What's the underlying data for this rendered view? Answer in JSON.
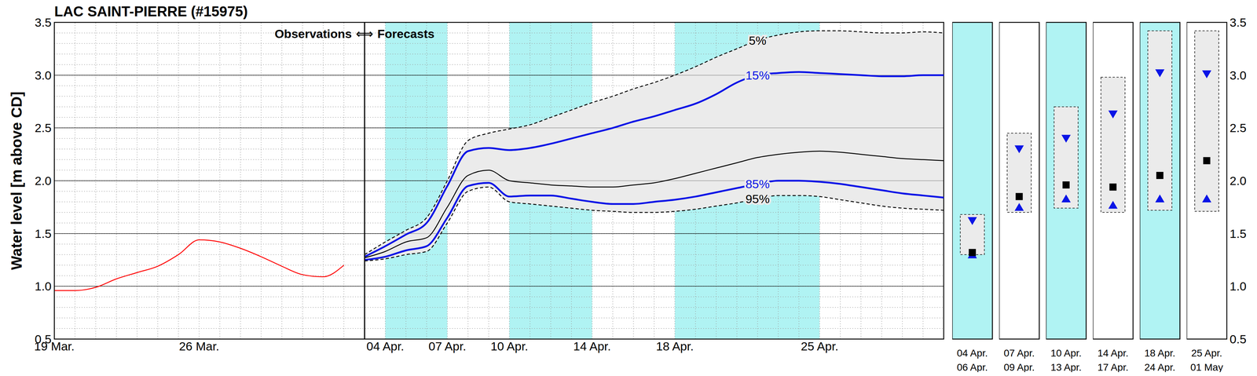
{
  "chart_data": {
    "type": "line",
    "title": "LAC SAINT-PIERRE (#15975)",
    "y_label": "Water level [m above CD]",
    "annotation": "Observations ⟺ Forecasts",
    "forecast_start": 15,
    "xlim": [
      0,
      43
    ],
    "xticks": [
      {
        "value": 0,
        "label": "19 Mar."
      },
      {
        "value": 7,
        "label": "26 Mar."
      },
      {
        "value": 16,
        "label": "04 Apr."
      },
      {
        "value": 19,
        "label": "07 Apr."
      },
      {
        "value": 22,
        "label": "10 Apr."
      },
      {
        "value": 26,
        "label": "14 Apr."
      },
      {
        "value": 30,
        "label": "18 Apr."
      },
      {
        "value": 37,
        "label": "25 Apr."
      }
    ],
    "ylim": [
      0.5,
      3.5
    ],
    "yticks": [
      0.5,
      {
        "value": 1,
        "label": "1.0"
      },
      1.5,
      {
        "value": 2,
        "label": "2.0"
      },
      2.5,
      {
        "value": 3,
        "label": "3.0"
      },
      3.5
    ],
    "grid": true,
    "shaded_periods": [
      {
        "from": 16,
        "to": 19
      },
      {
        "from": 22,
        "to": 26
      },
      {
        "from": 30,
        "to": 37
      }
    ],
    "series": [
      {
        "color": "#ff0000",
        "line_style": "solid",
        "x": [
          0,
          1,
          2,
          3,
          4,
          5,
          6,
          7,
          8,
          9,
          10,
          11,
          12,
          13,
          14
        ],
        "values": [
          0.96,
          0.96,
          0.99,
          1.07,
          1.13,
          1.19,
          1.3,
          1.44,
          1.42,
          1.36,
          1.28,
          1.19,
          1.11,
          1.09,
          1.2
        ]
      },
      {
        "name": "5%",
        "color": "#000000",
        "line_style": "dashed",
        "x": [
          15,
          16,
          17,
          18,
          19,
          20,
          21,
          22,
          23,
          24,
          25,
          26,
          27,
          28,
          29,
          30,
          31,
          32,
          33,
          34,
          35,
          36,
          37,
          38,
          39,
          40,
          41,
          42,
          43
        ],
        "values": [
          1.3,
          1.42,
          1.53,
          1.65,
          2.0,
          2.38,
          2.45,
          2.49,
          2.53,
          2.6,
          2.67,
          2.74,
          2.8,
          2.87,
          2.93,
          3.0,
          3.08,
          3.17,
          3.25,
          3.33,
          3.38,
          3.41,
          3.42,
          3.42,
          3.41,
          3.4,
          3.4,
          3.41,
          3.4
        ]
      },
      {
        "name": "15%",
        "color": "#0a14e6",
        "line_style": "solid",
        "x": [
          15,
          16,
          17,
          18,
          19,
          20,
          21,
          22,
          23,
          24,
          25,
          26,
          27,
          28,
          29,
          30,
          31,
          32,
          33,
          34,
          35,
          36,
          37,
          38,
          39,
          40,
          41,
          42,
          43
        ],
        "values": [
          1.28,
          1.38,
          1.49,
          1.6,
          1.95,
          2.28,
          2.31,
          2.29,
          2.31,
          2.35,
          2.4,
          2.45,
          2.5,
          2.56,
          2.61,
          2.67,
          2.73,
          2.82,
          2.93,
          3.0,
          3.02,
          3.03,
          3.02,
          3.01,
          3.0,
          2.99,
          2.99,
          3.0,
          3.0
        ]
      },
      {
        "color": "#000000",
        "line_style": "solid",
        "x": [
          15,
          16,
          17,
          18,
          19,
          20,
          21,
          22,
          23,
          24,
          25,
          26,
          27,
          28,
          29,
          30,
          31,
          32,
          33,
          34,
          35,
          36,
          37,
          38,
          39,
          40,
          41,
          42,
          43
        ],
        "values": [
          1.27,
          1.33,
          1.42,
          1.46,
          1.75,
          2.05,
          2.1,
          2.0,
          1.98,
          1.96,
          1.95,
          1.94,
          1.94,
          1.96,
          1.98,
          2.02,
          2.07,
          2.12,
          2.17,
          2.22,
          2.25,
          2.27,
          2.28,
          2.27,
          2.25,
          2.23,
          2.21,
          2.2,
          2.19
        ]
      },
      {
        "name": "85%",
        "color": "#0a14e6",
        "line_style": "solid",
        "x": [
          15,
          16,
          17,
          18,
          19,
          20,
          21,
          22,
          23,
          24,
          25,
          26,
          27,
          28,
          29,
          30,
          31,
          32,
          33,
          34,
          35,
          36,
          37,
          38,
          39,
          40,
          41,
          42,
          43
        ],
        "values": [
          1.25,
          1.28,
          1.34,
          1.38,
          1.65,
          1.95,
          1.98,
          1.85,
          1.86,
          1.86,
          1.83,
          1.8,
          1.78,
          1.78,
          1.8,
          1.82,
          1.85,
          1.89,
          1.93,
          1.97,
          2.0,
          2.0,
          1.99,
          1.97,
          1.94,
          1.91,
          1.88,
          1.86,
          1.84
        ]
      },
      {
        "name": "95%",
        "color": "#000000",
        "line_style": "dashed",
        "x": [
          15,
          16,
          17,
          18,
          19,
          20,
          21,
          22,
          23,
          24,
          25,
          26,
          27,
          28,
          29,
          30,
          31,
          32,
          33,
          34,
          35,
          36,
          37,
          38,
          39,
          40,
          41,
          42,
          43
        ],
        "values": [
          1.24,
          1.26,
          1.3,
          1.33,
          1.6,
          1.9,
          1.94,
          1.8,
          1.78,
          1.76,
          1.74,
          1.72,
          1.71,
          1.7,
          1.7,
          1.71,
          1.73,
          1.76,
          1.79,
          1.83,
          1.86,
          1.86,
          1.85,
          1.82,
          1.79,
          1.76,
          1.74,
          1.73,
          1.72
        ]
      }
    ],
    "panels": [
      {
        "period": [
          "04 Apr.",
          "06 Apr."
        ],
        "x": [
          16,
          18
        ],
        "p5": 1.68,
        "p15": 1.62,
        "median": 1.32,
        "p85": 1.3,
        "p95": 1.3
      },
      {
        "period": [
          "07 Apr.",
          "09 Apr."
        ],
        "x": [
          19,
          21
        ],
        "p5": 2.45,
        "p15": 2.3,
        "median": 1.85,
        "p85": 1.75,
        "p95": 1.7
      },
      {
        "period": [
          "10 Apr.",
          "13 Apr."
        ],
        "x": [
          22,
          25
        ],
        "p5": 2.7,
        "p15": 2.4,
        "median": 1.96,
        "p85": 1.83,
        "p95": 1.74
      },
      {
        "period": [
          "14 Apr.",
          "17 Apr."
        ],
        "x": [
          26,
          29
        ],
        "p5": 2.98,
        "p15": 2.63,
        "median": 1.94,
        "p85": 1.77,
        "p95": 1.7
      },
      {
        "period": [
          "18 Apr.",
          "24 Apr."
        ],
        "x": [
          30,
          36
        ],
        "p5": 3.42,
        "p15": 3.02,
        "median": 2.05,
        "p85": 1.83,
        "p95": 1.72
      },
      {
        "period": [
          "25 Apr.",
          "01 May"
        ],
        "x": [
          37,
          43
        ],
        "p5": 3.42,
        "p15": 3.01,
        "median": 2.19,
        "p85": 1.83,
        "p95": 1.71
      }
    ]
  }
}
